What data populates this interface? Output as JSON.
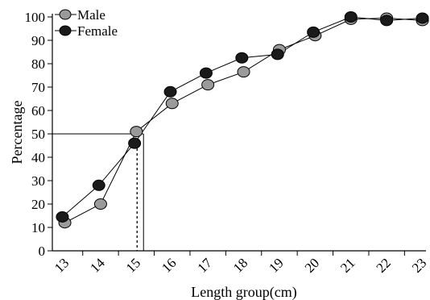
{
  "chart_data": {
    "type": "line",
    "xlabel": "Length group(cm)",
    "ylabel": "Percentage",
    "x_ticks": [
      "13",
      "14",
      "15",
      "16",
      "17",
      "18",
      "19",
      "20",
      "21",
      "22",
      "23"
    ],
    "y_ticks": [
      "0",
      "10",
      "20",
      "30",
      "40",
      "50",
      "60",
      "70",
      "80",
      "90",
      "100"
    ],
    "ylim": [
      0,
      100
    ],
    "xlim": [
      12.65,
      23.1
    ],
    "grid": false,
    "legend_position": "top-left",
    "series": [
      {
        "name": "Male",
        "marker_color": "#9a9a9a",
        "points": [
          {
            "x": 13.0,
            "y": 12
          },
          {
            "x": 14.0,
            "y": 20
          },
          {
            "x": 15.0,
            "y": 51
          },
          {
            "x": 16.0,
            "y": 63
          },
          {
            "x": 17.0,
            "y": 71
          },
          {
            "x": 18.0,
            "y": 76.5
          },
          {
            "x": 19.0,
            "y": 86
          },
          {
            "x": 20.0,
            "y": 92
          },
          {
            "x": 21.0,
            "y": 99
          },
          {
            "x": 22.0,
            "y": 99.5
          },
          {
            "x": 23.0,
            "y": 98.5
          }
        ]
      },
      {
        "name": "Female",
        "marker_color": "#1a1a1a",
        "points": [
          {
            "x": 12.93,
            "y": 14.5
          },
          {
            "x": 13.95,
            "y": 28
          },
          {
            "x": 14.95,
            "y": 46
          },
          {
            "x": 15.95,
            "y": 68
          },
          {
            "x": 16.95,
            "y": 76
          },
          {
            "x": 17.95,
            "y": 82.5
          },
          {
            "x": 18.95,
            "y": 84
          },
          {
            "x": 19.95,
            "y": 93.5
          },
          {
            "x": 21.0,
            "y": 100
          },
          {
            "x": 22.0,
            "y": 98.5
          },
          {
            "x": 23.0,
            "y": 99.5
          }
        ]
      }
    ],
    "reference": {
      "y": 50,
      "solid_x": 15.2,
      "dashed_x": 15.02
    }
  }
}
